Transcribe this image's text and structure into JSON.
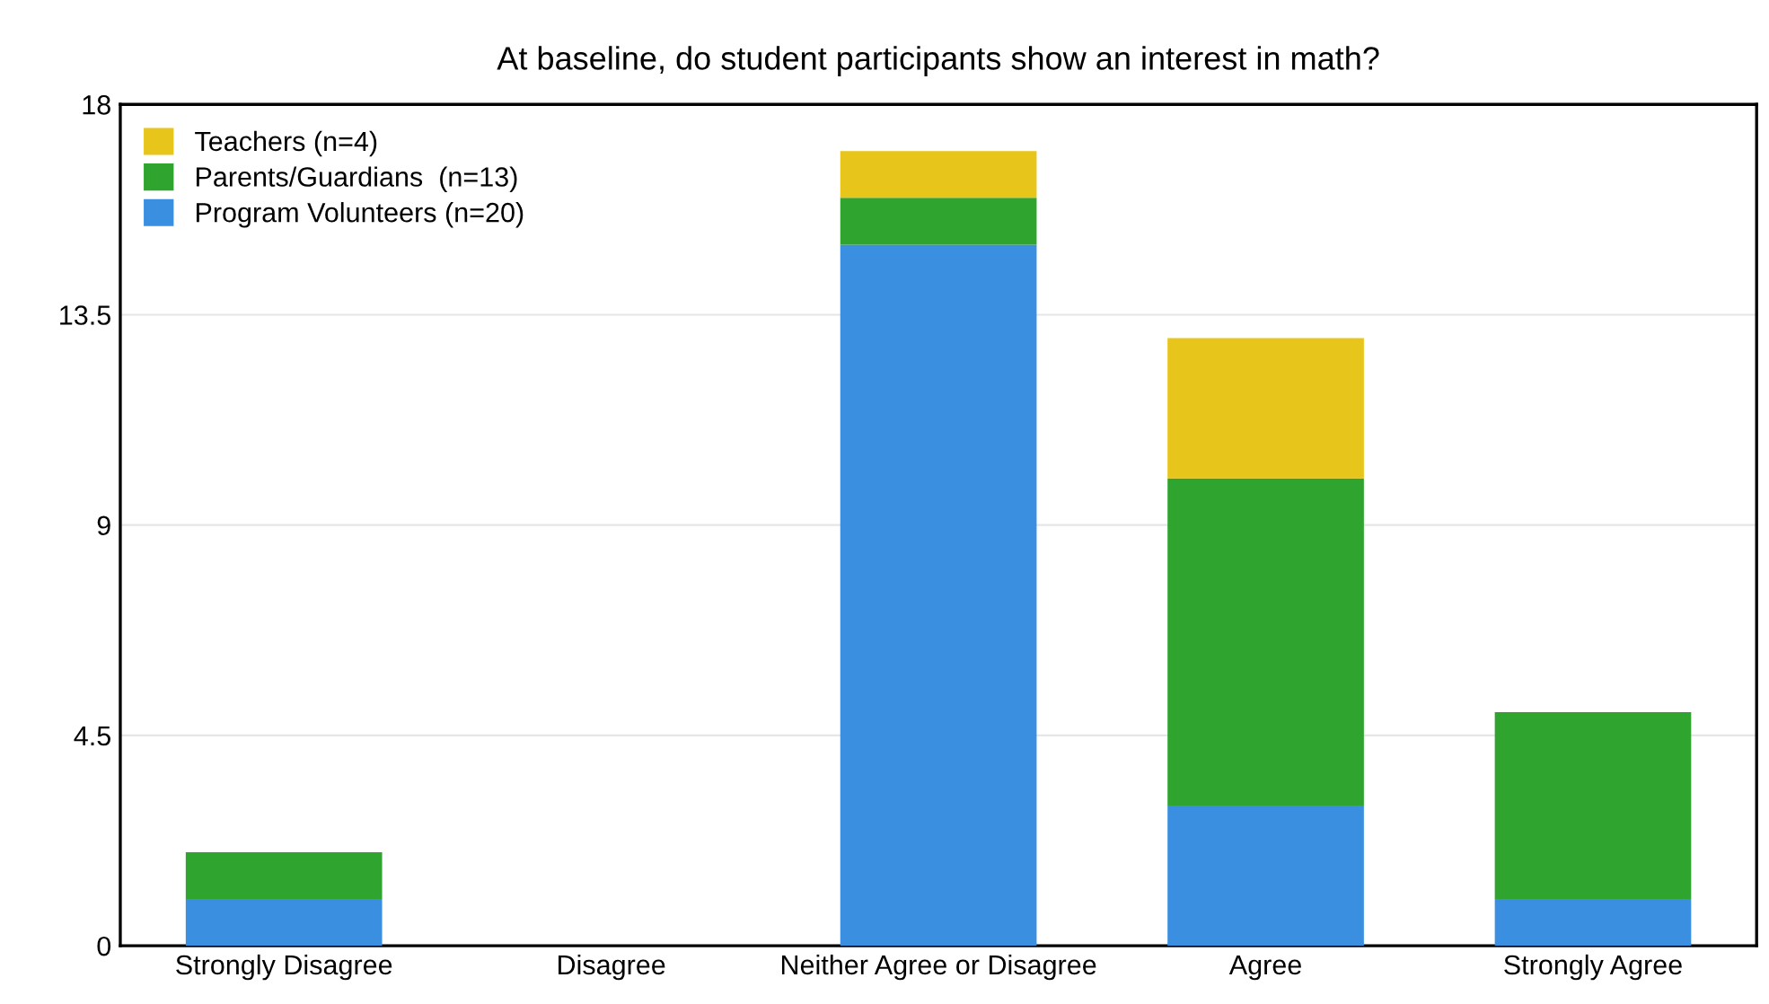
{
  "chart_data": {
    "type": "bar",
    "stacked": true,
    "title": "At baseline, do student participants show an interest in math?",
    "categories": [
      "Strongly Disagree",
      "Disagree",
      "Neither Agree or Disagree",
      "Agree",
      "Strongly Agree"
    ],
    "series": [
      {
        "name": "Program Volunteers (n=20)",
        "color": "#3a8fe0",
        "values": [
          1,
          0,
          15,
          3,
          1
        ]
      },
      {
        "name": "Parents/Guardians  (n=13)",
        "color": "#2fa52f",
        "values": [
          1,
          0,
          1,
          7,
          4
        ]
      },
      {
        "name": "Teachers (n=4)",
        "color": "#e8c51a",
        "values": [
          0,
          0,
          1,
          3,
          0
        ]
      }
    ],
    "ylim": [
      0,
      18
    ],
    "yticks": [
      0,
      4.5,
      9,
      13.5,
      18
    ],
    "grid": "y",
    "legend": "top left"
  }
}
